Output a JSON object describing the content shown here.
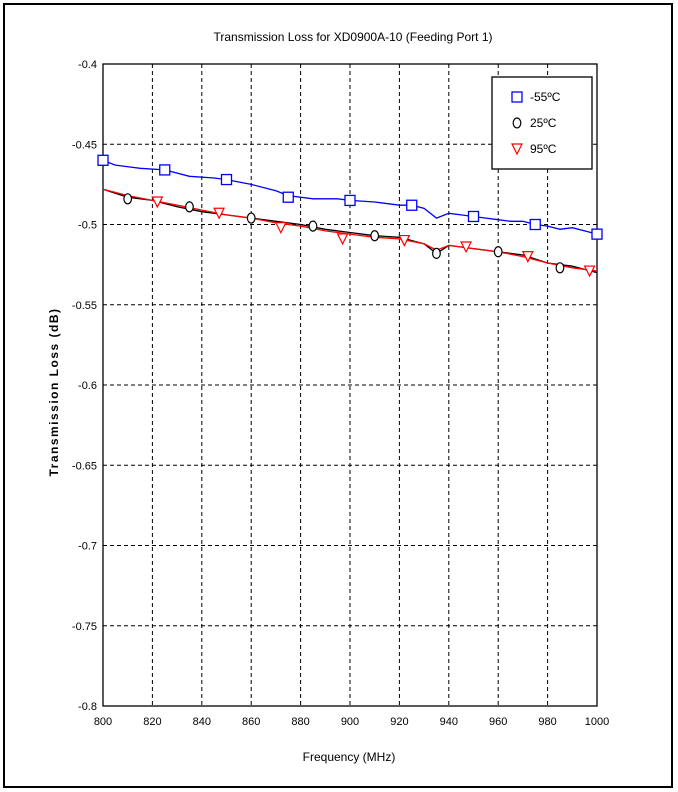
{
  "chart_data": {
    "type": "line",
    "title": "Transmission Loss for XD0900A-10 (Feeding Port 1)",
    "xlabel": "Frequency (MHz)",
    "ylabel": "Transmission Loss (dB)",
    "xlim": [
      800,
      1000
    ],
    "ylim": [
      -0.8,
      -0.4
    ],
    "xticks": [
      "800",
      "820",
      "840",
      "860",
      "880",
      "900",
      "920",
      "940",
      "960",
      "980",
      "1000"
    ],
    "yticks": [
      "-0.4",
      "-0.45",
      "-0.5",
      "-0.55",
      "-0.6",
      "-0.65",
      "-0.7",
      "-0.75",
      "-0.8"
    ],
    "grid": true,
    "legend_position": "top-right",
    "series": [
      {
        "name": "-55ºC",
        "color": "#0000ff",
        "marker": "square",
        "line": {
          "x": [
            800,
            805,
            815,
            825,
            835,
            845,
            850,
            860,
            870,
            875,
            885,
            895,
            900,
            910,
            920,
            925,
            930,
            935,
            940,
            945,
            950,
            955,
            960,
            965,
            970,
            975,
            980,
            985,
            990,
            995,
            1000
          ],
          "y": [
            -0.46,
            -0.463,
            -0.465,
            -0.466,
            -0.47,
            -0.471,
            -0.472,
            -0.475,
            -0.479,
            -0.482,
            -0.484,
            -0.484,
            -0.485,
            -0.486,
            -0.488,
            -0.488,
            -0.49,
            -0.496,
            -0.493,
            -0.494,
            -0.495,
            -0.496,
            -0.497,
            -0.498,
            -0.498,
            -0.5,
            -0.501,
            -0.503,
            -0.502,
            -0.504,
            -0.506
          ]
        },
        "markers": {
          "x": [
            800,
            825,
            850,
            875,
            900,
            925,
            950,
            975,
            1000
          ],
          "y": [
            -0.46,
            -0.466,
            -0.472,
            -0.483,
            -0.485,
            -0.488,
            -0.495,
            -0.5,
            -0.506
          ]
        }
      },
      {
        "name": "25ºC",
        "color": "#000000",
        "marker": "circle",
        "line": {
          "x": [
            800,
            810,
            820,
            830,
            840,
            850,
            860,
            870,
            880,
            890,
            900,
            910,
            920,
            930,
            935,
            940,
            950,
            960,
            970,
            980,
            990,
            1000
          ],
          "y": [
            -0.478,
            -0.483,
            -0.485,
            -0.489,
            -0.492,
            -0.494,
            -0.496,
            -0.498,
            -0.5,
            -0.503,
            -0.505,
            -0.507,
            -0.508,
            -0.512,
            -0.518,
            -0.513,
            -0.515,
            -0.517,
            -0.519,
            -0.524,
            -0.526,
            -0.53
          ]
        },
        "markers": {
          "x": [
            810,
            835,
            860,
            885,
            910,
            935,
            960,
            985
          ],
          "y": [
            -0.484,
            -0.489,
            -0.496,
            -0.501,
            -0.507,
            -0.518,
            -0.517,
            -0.527
          ]
        }
      },
      {
        "name": "95ºC",
        "color": "#ff0000",
        "marker": "triangle-down",
        "line": {
          "x": [
            800,
            810,
            820,
            830,
            840,
            850,
            860,
            870,
            880,
            890,
            900,
            910,
            920,
            930,
            935,
            940,
            950,
            960,
            970,
            980,
            990,
            1000
          ],
          "y": [
            -0.478,
            -0.482,
            -0.485,
            -0.488,
            -0.491,
            -0.494,
            -0.496,
            -0.499,
            -0.501,
            -0.504,
            -0.506,
            -0.508,
            -0.509,
            -0.512,
            -0.516,
            -0.513,
            -0.515,
            -0.517,
            -0.52,
            -0.524,
            -0.527,
            -0.529
          ]
        },
        "markers": {
          "x": [
            822,
            847,
            872,
            897,
            922,
            947,
            972,
            997
          ],
          "y": [
            -0.486,
            -0.493,
            -0.502,
            -0.509,
            -0.51,
            -0.514,
            -0.52,
            -0.529
          ]
        }
      }
    ]
  }
}
